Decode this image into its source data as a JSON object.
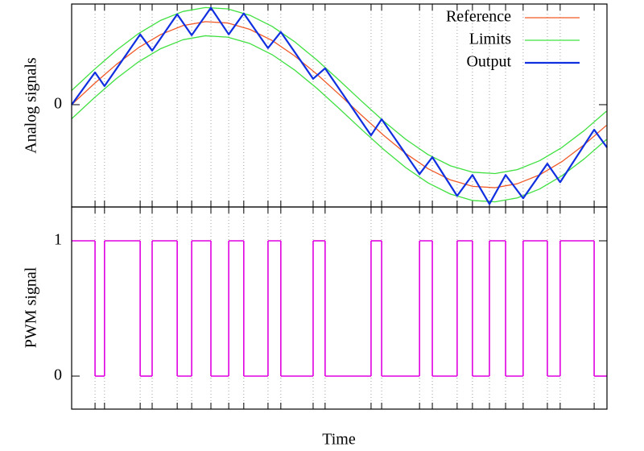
{
  "chart_data": [
    {
      "type": "line",
      "ylabel": "Analog signals",
      "xlim": [
        0,
        1.922
      ],
      "ylim": [
        -1.23,
        1.21
      ],
      "yticks": [
        0
      ],
      "grid": true,
      "legend": "top-right",
      "xticks": [
        0.084,
        0.118,
        0.246,
        0.289,
        0.379,
        0.431,
        0.5,
        0.564,
        0.618,
        0.705,
        0.751,
        0.867,
        0.91,
        1.075,
        1.113,
        1.249,
        1.295,
        1.384,
        1.439,
        1.5,
        1.558,
        1.621,
        1.708,
        1.754,
        1.876
      ],
      "x": [
        0,
        0.08,
        0.16,
        0.24,
        0.32,
        0.4,
        0.48,
        0.56,
        0.64,
        0.72,
        0.8,
        0.88,
        0.96,
        1.04,
        1.12,
        1.2,
        1.28,
        1.36,
        1.44,
        1.52,
        1.6,
        1.68,
        1.76,
        1.84,
        1.92
      ],
      "series": [
        {
          "name": "Reference",
          "color": "#f05a28",
          "values": [
            0,
            0.249,
            0.482,
            0.685,
            0.844,
            0.951,
            0.998,
            0.982,
            0.905,
            0.771,
            0.588,
            0.368,
            0.125,
            -0.125,
            -0.368,
            -0.588,
            -0.771,
            -0.905,
            -0.982,
            -0.998,
            -0.951,
            -0.844,
            -0.685,
            -0.482,
            -0.249
          ]
        },
        {
          "name": "Limits",
          "color": "#40e040",
          "upper": [
            0.17,
            0.419,
            0.652,
            0.855,
            1.014,
            1.121,
            1.168,
            1.152,
            1.075,
            0.941,
            0.758,
            0.538,
            0.295,
            0.045,
            -0.198,
            -0.418,
            -0.601,
            -0.735,
            -0.812,
            -0.828,
            -0.781,
            -0.674,
            -0.515,
            -0.312,
            -0.079
          ],
          "lower": [
            -0.17,
            0.079,
            0.312,
            0.515,
            0.674,
            0.781,
            0.828,
            0.812,
            0.735,
            0.601,
            0.418,
            0.198,
            -0.045,
            -0.295,
            -0.538,
            -0.758,
            -0.941,
            -1.075,
            -1.152,
            -1.168,
            -1.121,
            -1.014,
            -0.855,
            -0.652,
            -0.419
          ]
        },
        {
          "name": "Output",
          "color": "#1030e0",
          "x": [
            0,
            0.084,
            0.118,
            0.246,
            0.289,
            0.379,
            0.431,
            0.5,
            0.564,
            0.618,
            0.705,
            0.751,
            0.867,
            0.91,
            1.075,
            1.113,
            1.249,
            1.295,
            1.384,
            1.439,
            1.5,
            1.558,
            1.621,
            1.708,
            1.754,
            1.876,
            1.922
          ],
          "values": [
            0,
            0.388,
            0.223,
            0.845,
            0.65,
            1.087,
            0.835,
            1.165,
            0.845,
            1.097,
            0.68,
            0.874,
            0.311,
            0.437,
            -0.369,
            -0.175,
            -0.835,
            -0.631,
            -1.097,
            -0.845,
            -1.194,
            -0.845,
            -1.126,
            -0.709,
            -0.932,
            -0.301,
            -0.515
          ]
        }
      ]
    },
    {
      "type": "step",
      "ylabel": "PWM signal",
      "xlabel": "Time",
      "xlim": [
        0,
        1.922
      ],
      "ylim": [
        -0.244,
        1.25
      ],
      "yticks": [
        0,
        1
      ],
      "grid": true,
      "xticks": [
        0.084,
        0.118,
        0.246,
        0.289,
        0.379,
        0.431,
        0.5,
        0.564,
        0.618,
        0.705,
        0.751,
        0.867,
        0.91,
        1.075,
        1.113,
        1.249,
        1.295,
        1.384,
        1.439,
        1.5,
        1.558,
        1.621,
        1.708,
        1.754,
        1.876
      ],
      "color": "#e000e0",
      "x": [
        0,
        0.084,
        0.118,
        0.246,
        0.289,
        0.379,
        0.431,
        0.5,
        0.564,
        0.618,
        0.705,
        0.751,
        0.867,
        0.91,
        1.075,
        1.113,
        1.249,
        1.295,
        1.384,
        1.439,
        1.5,
        1.558,
        1.621,
        1.708,
        1.754,
        1.876
      ],
      "values": [
        1,
        0,
        1,
        0,
        1,
        0,
        1,
        0,
        1,
        0,
        1,
        0,
        1,
        0,
        1,
        0,
        1,
        0,
        1,
        0,
        1,
        0,
        1,
        0,
        1,
        0
      ]
    }
  ]
}
